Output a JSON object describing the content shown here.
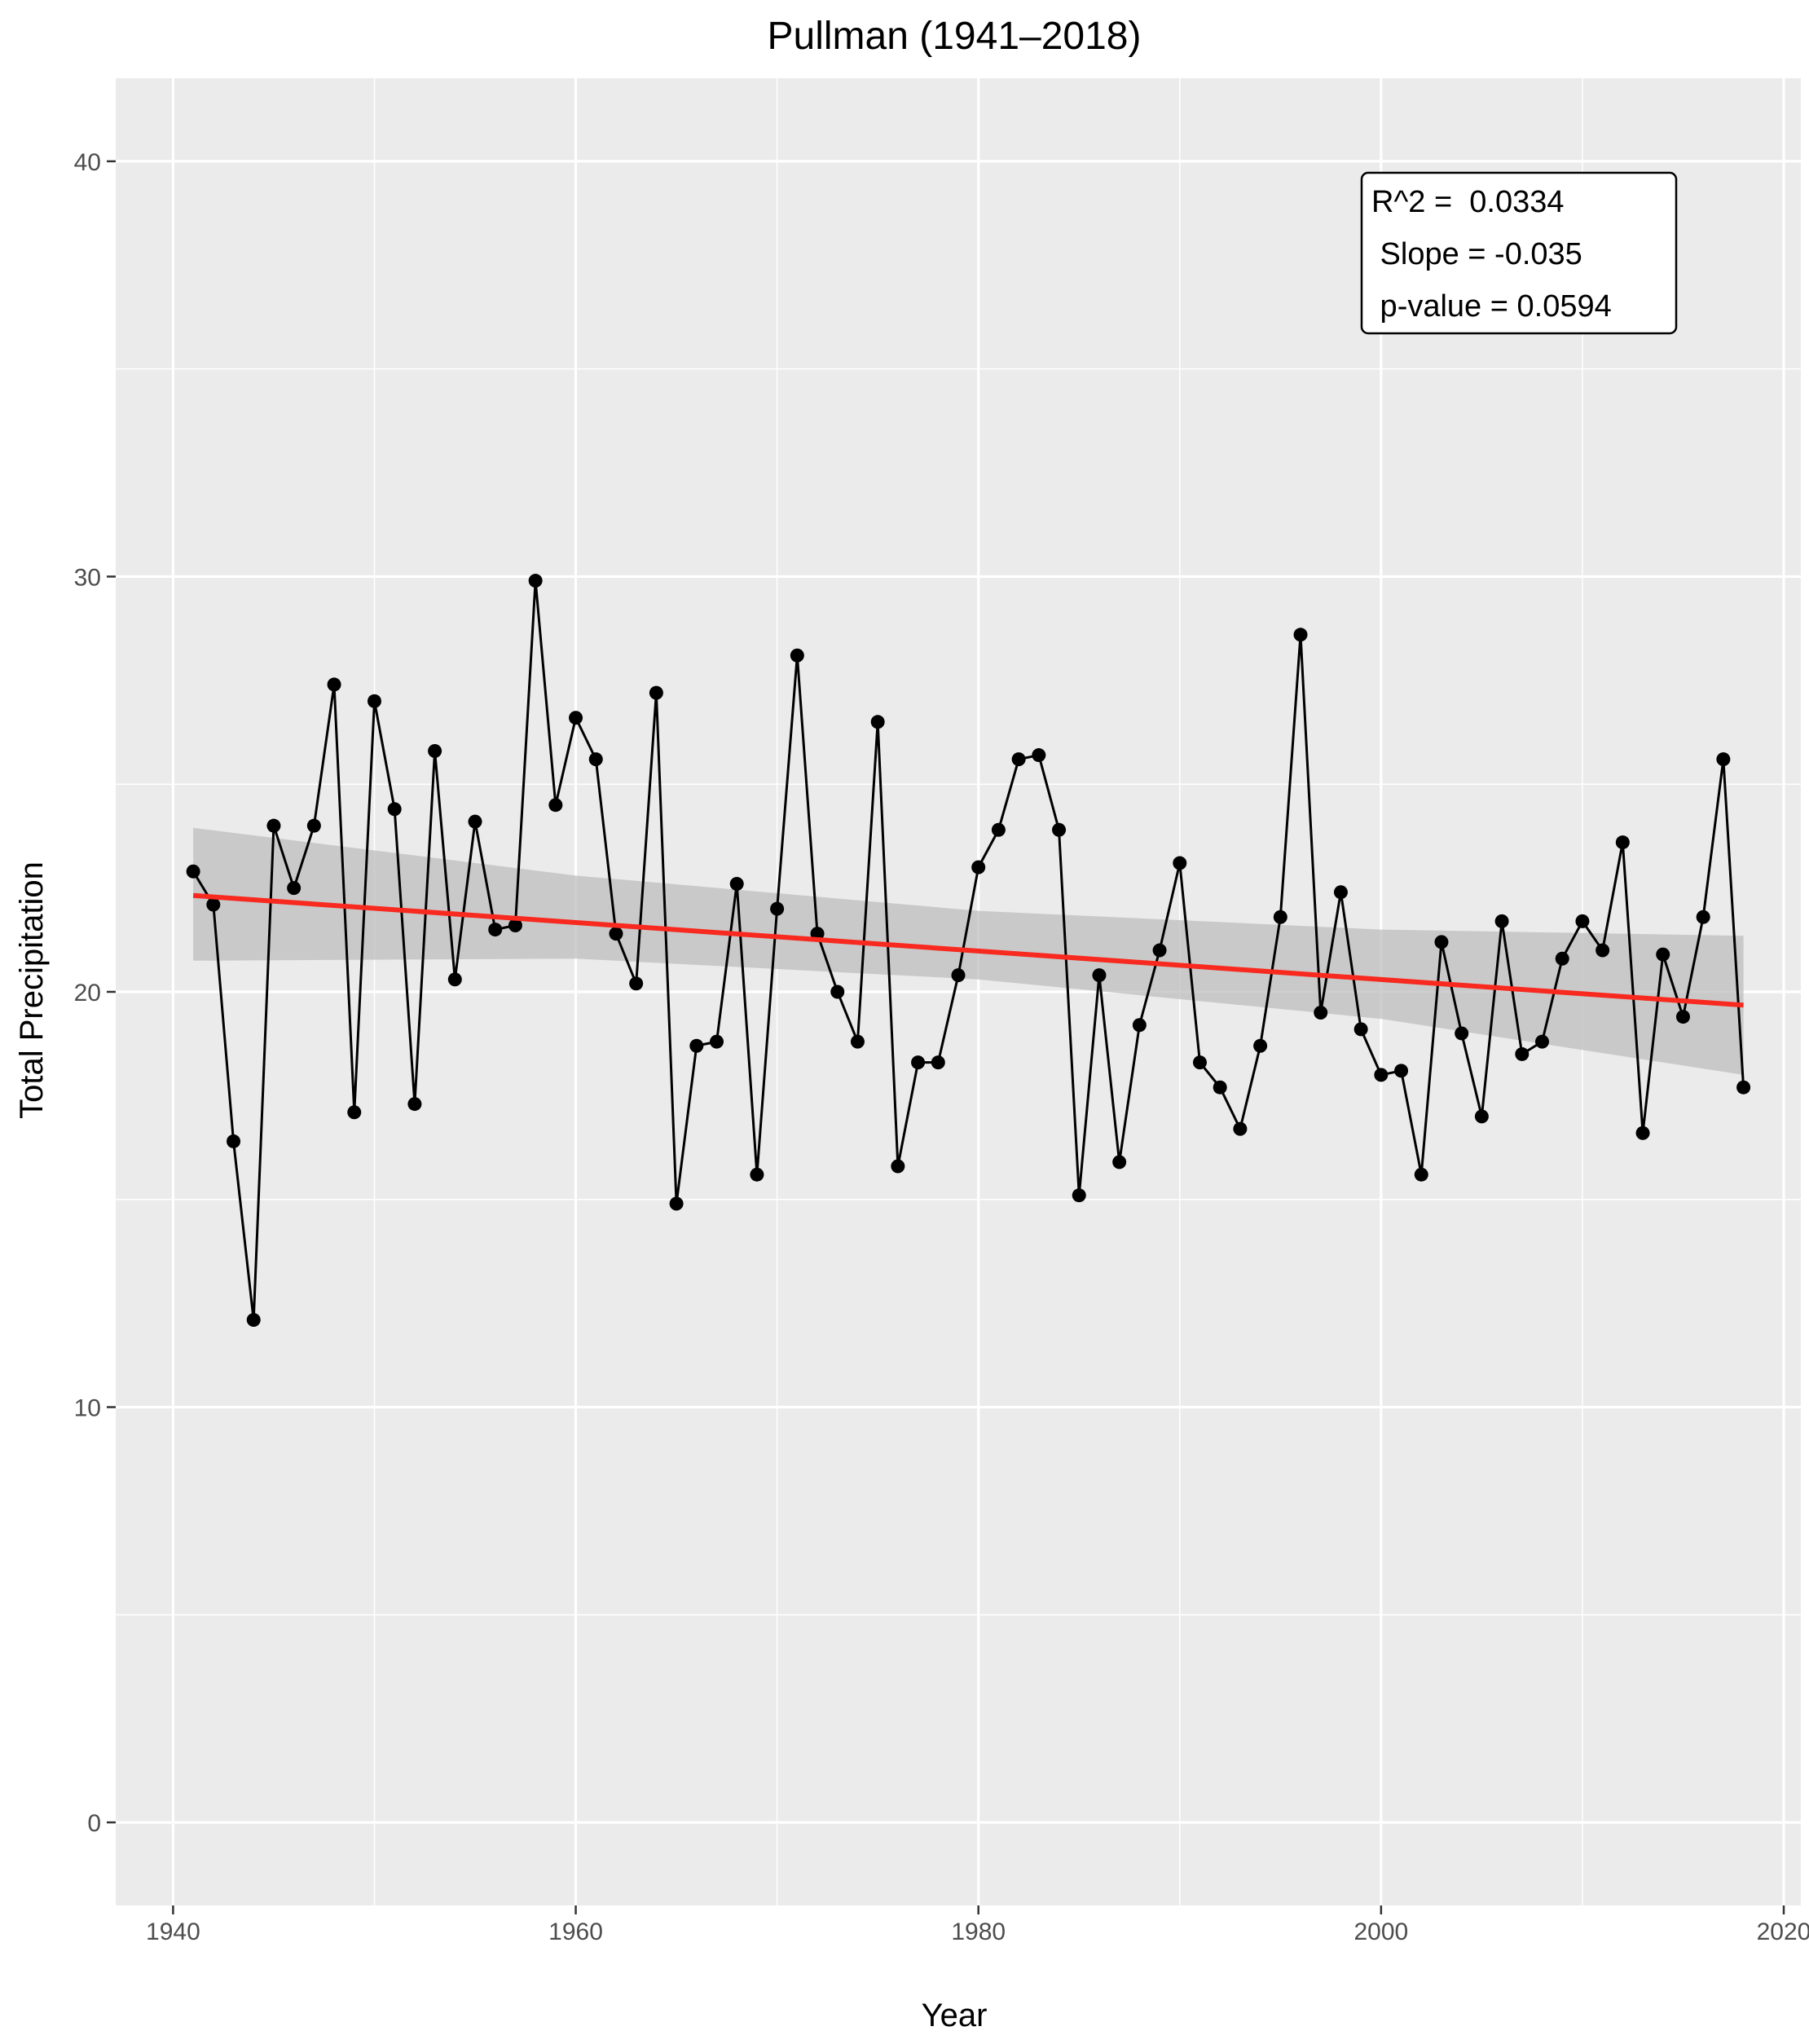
{
  "chart_data": {
    "type": "line",
    "title": "Pullman (1941–2018)",
    "xlabel": "Year",
    "ylabel": "Total Precipitation",
    "xlim": [
      1937.15,
      2020.85
    ],
    "ylim": [
      -2,
      42
    ],
    "x_ticks": [
      1940,
      1960,
      1980,
      2000,
      2020
    ],
    "x_tick_labels": [
      "1940",
      "1960",
      "1980",
      "2000",
      "2020"
    ],
    "y_ticks": [
      0,
      10,
      20,
      30,
      40
    ],
    "y_tick_labels": [
      "0",
      "10",
      "20",
      "30",
      "40"
    ],
    "grid": true,
    "series": [
      {
        "name": "Total Precipitation",
        "color": "#000000",
        "x": [
          1941,
          1942,
          1943,
          1944,
          1945,
          1946,
          1947,
          1948,
          1949,
          1950,
          1951,
          1952,
          1953,
          1954,
          1955,
          1956,
          1957,
          1958,
          1959,
          1960,
          1961,
          1962,
          1963,
          1964,
          1965,
          1966,
          1967,
          1968,
          1969,
          1970,
          1971,
          1972,
          1973,
          1974,
          1975,
          1976,
          1977,
          1978,
          1979,
          1980,
          1981,
          1982,
          1983,
          1984,
          1985,
          1986,
          1987,
          1988,
          1989,
          1990,
          1991,
          1992,
          1993,
          1994,
          1995,
          1996,
          1997,
          1998,
          1999,
          2000,
          2001,
          2002,
          2003,
          2004,
          2005,
          2006,
          2007,
          2008,
          2009,
          2010,
          2011,
          2012,
          2013,
          2014,
          2015,
          2016,
          2017,
          2018
        ],
        "values": [
          22.9,
          22.1,
          16.4,
          12.1,
          24.0,
          22.5,
          24.0,
          27.4,
          17.1,
          27.0,
          24.4,
          17.3,
          25.8,
          20.3,
          24.1,
          21.5,
          21.6,
          29.9,
          24.5,
          26.6,
          25.6,
          21.4,
          20.2,
          27.2,
          14.9,
          18.7,
          18.8,
          22.6,
          15.6,
          22.0,
          28.1,
          21.4,
          20.0,
          18.8,
          26.5,
          15.8,
          18.3,
          18.3,
          20.4,
          23.0,
          23.9,
          25.6,
          25.7,
          23.9,
          15.1,
          20.4,
          15.9,
          19.2,
          21.0,
          23.1,
          18.3,
          17.7,
          16.7,
          18.7,
          21.8,
          28.6,
          19.5,
          22.4,
          19.1,
          18.0,
          18.1,
          15.6,
          21.2,
          19.0,
          17.0,
          21.7,
          18.5,
          18.8,
          20.8,
          21.7,
          21.0,
          23.6,
          16.6,
          20.9,
          19.4,
          21.8,
          25.6,
          17.7
        ]
      }
    ],
    "trend_line": {
      "color": "#f8291e",
      "x": [
        1941,
        2018
      ],
      "values": [
        22.32,
        19.68
      ]
    },
    "confidence_band": {
      "color": "#bdbdbd",
      "x": [
        1941,
        1960,
        1980,
        2000,
        2018
      ],
      "upper": [
        23.95,
        22.8,
        21.95,
        21.5,
        21.35
      ],
      "lower": [
        20.75,
        20.8,
        20.3,
        19.35,
        18.0
      ]
    },
    "annotation": {
      "lines": [
        "R^2 =  0.0334",
        " Slope = -0.035",
        " p-value = 0.0594"
      ],
      "placement": "top-right"
    }
  }
}
